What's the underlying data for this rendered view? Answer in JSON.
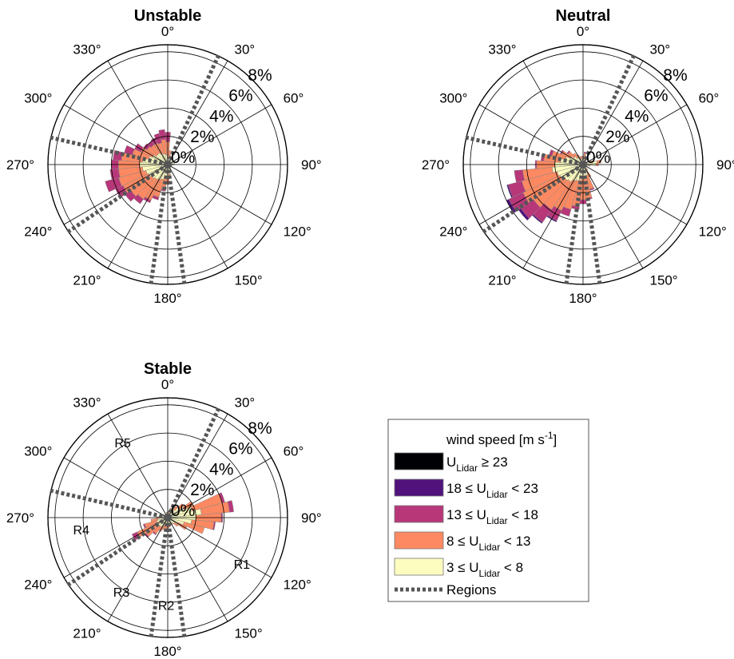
{
  "chart_data": {
    "type": "wind-rose",
    "angle_labels": [
      "0°",
      "30°",
      "60°",
      "90°",
      "120°",
      "150°",
      "180°",
      "210°",
      "240°",
      "270°",
      "300°",
      "330°"
    ],
    "radial_ticks": [
      "0%",
      "2%",
      "4%",
      "6%",
      "8%"
    ],
    "radial_values": [
      0,
      2,
      4,
      6,
      8
    ],
    "rmax": 8.5,
    "sector_width_deg": 10,
    "region_boundaries_deg": [
      25,
      172,
      188,
      236,
      283
    ],
    "legend": {
      "title": "wind speed [m s",
      "title_superscript": "-1",
      "title_close": "]",
      "entries": [
        {
          "name": "U ≥ 23",
          "pre": "U",
          "sub": "Lidar",
          "post": " ≥ 23",
          "color": "#000004"
        },
        {
          "name": "18 ≤ U < 23",
          "pre": "18 ≤ U",
          "sub": "Lidar",
          "post": " < 23",
          "color": "#51127c"
        },
        {
          "name": "13 ≤ U < 18",
          "pre": "13 ≤ U",
          "sub": "Lidar",
          "post": " < 18",
          "color": "#b73779"
        },
        {
          "name": "8 ≤ U < 13",
          "pre": "8 ≤ U",
          "sub": "Lidar",
          "post": " < 13",
          "color": "#fc8961"
        },
        {
          "name": "3 ≤ U < 8",
          "pre": "3 ≤ U",
          "sub": "Lidar",
          "post": " < 8",
          "color": "#fcfdbf"
        }
      ],
      "regions_label": "Regions"
    },
    "panels": [
      {
        "title": "Unstable",
        "region_labels": [],
        "sectors": [
          {
            "dir": 0,
            "cum": [
              0.5,
              1.6,
              2.3,
              2.3
            ]
          },
          {
            "dir": 10,
            "cum": [
              0.5,
              1.0,
              1.0,
              1.0
            ]
          },
          {
            "dir": 20,
            "cum": [
              0.4,
              0.6,
              0.6,
              0.6
            ]
          },
          {
            "dir": 30,
            "cum": [
              0.4,
              0.4,
              0.4,
              0.4
            ]
          },
          {
            "dir": 40,
            "cum": [
              0.3,
              0.3,
              0.3,
              0.3
            ]
          },
          {
            "dir": 50,
            "cum": [
              0.3,
              0.3,
              0.3,
              0.3
            ]
          },
          {
            "dir": 60,
            "cum": [
              0.3,
              0.3,
              0.3,
              0.3
            ]
          },
          {
            "dir": 70,
            "cum": [
              0.4,
              0.4,
              0.4,
              0.4
            ]
          },
          {
            "dir": 80,
            "cum": [
              0.5,
              0.5,
              0.5,
              0.5
            ]
          },
          {
            "dir": 90,
            "cum": [
              0.4,
              0.4,
              0.4,
              0.4
            ]
          },
          {
            "dir": 100,
            "cum": [
              0.3,
              0.3,
              0.3,
              0.3
            ]
          },
          {
            "dir": 110,
            "cum": [
              0.3,
              0.3,
              0.3,
              0.3
            ]
          },
          {
            "dir": 120,
            "cum": [
              0.3,
              0.3,
              0.3,
              0.3
            ]
          },
          {
            "dir": 130,
            "cum": [
              0.3,
              0.3,
              0.3,
              0.3
            ]
          },
          {
            "dir": 140,
            "cum": [
              0.3,
              0.3,
              0.3,
              0.3
            ]
          },
          {
            "dir": 150,
            "cum": [
              0.4,
              0.4,
              0.4,
              0.4
            ]
          },
          {
            "dir": 160,
            "cum": [
              0.5,
              0.6,
              0.6,
              0.6
            ]
          },
          {
            "dir": 170,
            "cum": [
              0.7,
              1.0,
              1.0,
              1.0
            ]
          },
          {
            "dir": 180,
            "cum": [
              0.8,
              1.4,
              1.4,
              1.4
            ]
          },
          {
            "dir": 190,
            "cum": [
              0.9,
              1.8,
              1.9,
              1.9
            ]
          },
          {
            "dir": 200,
            "cum": [
              1.1,
              2.4,
              2.6,
              2.6
            ]
          },
          {
            "dir": 210,
            "cum": [
              1.2,
              2.8,
              3.0,
              3.0
            ]
          },
          {
            "dir": 220,
            "cum": [
              1.3,
              3.0,
              3.4,
              3.4
            ]
          },
          {
            "dir": 230,
            "cum": [
              1.4,
              3.2,
              3.7,
              3.7
            ]
          },
          {
            "dir": 240,
            "cum": [
              1.5,
              3.5,
              4.1,
              4.1
            ]
          },
          {
            "dir": 250,
            "cum": [
              1.6,
              3.6,
              4.6,
              4.6
            ]
          },
          {
            "dir": 260,
            "cum": [
              1.8,
              3.5,
              4.1,
              4.1
            ]
          },
          {
            "dir": 270,
            "cum": [
              2.0,
              3.5,
              4.0,
              4.0
            ]
          },
          {
            "dir": 280,
            "cum": [
              1.8,
              3.3,
              3.9,
              3.9
            ]
          },
          {
            "dir": 290,
            "cum": [
              1.4,
              2.6,
              3.2,
              3.2
            ]
          },
          {
            "dir": 300,
            "cum": [
              1.2,
              2.1,
              2.6,
              2.6
            ]
          },
          {
            "dir": 310,
            "cum": [
              1.0,
              1.8,
              2.1,
              2.1
            ]
          },
          {
            "dir": 320,
            "cum": [
              1.0,
              1.7,
              2.0,
              2.0
            ]
          },
          {
            "dir": 330,
            "cum": [
              0.9,
              1.7,
              2.1,
              2.1
            ]
          },
          {
            "dir": 340,
            "cum": [
              0.8,
              1.6,
              2.3,
              2.3
            ]
          },
          {
            "dir": 350,
            "cum": [
              0.7,
              1.8,
              2.5,
              2.5
            ]
          }
        ]
      },
      {
        "title": "Neutral",
        "region_labels": [],
        "sectors": [
          {
            "dir": 0,
            "cum": [
              0.4,
              0.6,
              0.6,
              0.6
            ]
          },
          {
            "dir": 10,
            "cum": [
              0.4,
              0.8,
              0.9,
              0.9
            ]
          },
          {
            "dir": 20,
            "cum": [
              0.3,
              0.5,
              0.5,
              0.5
            ]
          },
          {
            "dir": 30,
            "cum": [
              0.3,
              0.3,
              0.3,
              0.3
            ]
          },
          {
            "dir": 40,
            "cum": [
              0.3,
              0.3,
              0.3,
              0.3
            ]
          },
          {
            "dir": 50,
            "cum": [
              0.3,
              0.3,
              0.3,
              0.3
            ]
          },
          {
            "dir": 60,
            "cum": [
              0.4,
              0.5,
              0.5,
              0.5
            ]
          },
          {
            "dir": 70,
            "cum": [
              0.6,
              0.7,
              0.7,
              0.7
            ]
          },
          {
            "dir": 80,
            "cum": [
              1.0,
              1.3,
              1.3,
              1.3
            ]
          },
          {
            "dir": 90,
            "cum": [
              0.9,
              1.1,
              1.1,
              1.1
            ]
          },
          {
            "dir": 100,
            "cum": [
              0.4,
              0.5,
              0.5,
              0.5
            ]
          },
          {
            "dir": 110,
            "cum": [
              0.3,
              0.3,
              0.3,
              0.3
            ]
          },
          {
            "dir": 120,
            "cum": [
              0.3,
              0.3,
              0.3,
              0.3
            ]
          },
          {
            "dir": 130,
            "cum": [
              0.3,
              0.3,
              0.3,
              0.3
            ]
          },
          {
            "dir": 140,
            "cum": [
              0.4,
              0.5,
              0.5,
              0.5
            ]
          },
          {
            "dir": 150,
            "cum": [
              0.6,
              1.0,
              1.0,
              1.0
            ]
          },
          {
            "dir": 160,
            "cum": [
              0.8,
              1.8,
              1.9,
              1.9
            ]
          },
          {
            "dir": 170,
            "cum": [
              0.9,
              2.4,
              2.5,
              2.5
            ]
          },
          {
            "dir": 180,
            "cum": [
              1.0,
              2.5,
              2.8,
              2.8
            ]
          },
          {
            "dir": 190,
            "cum": [
              1.1,
              3.0,
              3.2,
              3.2
            ]
          },
          {
            "dir": 200,
            "cum": [
              1.2,
              3.3,
              3.8,
              3.8
            ]
          },
          {
            "dir": 210,
            "cum": [
              1.3,
              3.6,
              4.4,
              4.5
            ]
          },
          {
            "dir": 220,
            "cum": [
              1.5,
              3.9,
              5.0,
              5.1
            ]
          },
          {
            "dir": 230,
            "cum": [
              1.6,
              4.3,
              5.4,
              5.6
            ]
          },
          {
            "dir": 240,
            "cum": [
              1.8,
              4.7,
              5.8,
              6.0
            ]
          },
          {
            "dir": 250,
            "cum": [
              1.9,
              4.5,
              5.5,
              5.6
            ]
          },
          {
            "dir": 260,
            "cum": [
              2.2,
              4.3,
              4.9,
              4.9
            ]
          },
          {
            "dir": 270,
            "cum": [
              2.0,
              3.3,
              3.4,
              3.4
            ]
          },
          {
            "dir": 280,
            "cum": [
              1.6,
              2.8,
              3.0,
              3.0
            ]
          },
          {
            "dir": 290,
            "cum": [
              1.3,
              2.3,
              2.5,
              2.5
            ]
          },
          {
            "dir": 300,
            "cum": [
              1.0,
              1.7,
              1.8,
              1.8
            ]
          },
          {
            "dir": 310,
            "cum": [
              0.8,
              1.3,
              1.4,
              1.4
            ]
          },
          {
            "dir": 320,
            "cum": [
              0.6,
              1.0,
              1.0,
              1.0
            ]
          },
          {
            "dir": 330,
            "cum": [
              0.5,
              0.8,
              0.8,
              0.8
            ]
          },
          {
            "dir": 340,
            "cum": [
              0.4,
              0.6,
              0.6,
              0.6
            ]
          },
          {
            "dir": 350,
            "cum": [
              0.4,
              0.6,
              0.6,
              0.6
            ]
          }
        ]
      },
      {
        "title": "Stable",
        "region_labels": [
          "R1",
          "R2",
          "R3",
          "R4",
          "R5"
        ],
        "region_label_dirs": [
          122,
          181,
          212,
          262,
          329
        ],
        "region_label_r": 6.2,
        "sectors": [
          {
            "dir": 0,
            "cum": [
              0.3,
              0.4,
              0.4,
              0.4
            ]
          },
          {
            "dir": 10,
            "cum": [
              0.3,
              0.5,
              0.5,
              0.5
            ]
          },
          {
            "dir": 20,
            "cum": [
              0.4,
              0.7,
              0.7,
              0.7
            ]
          },
          {
            "dir": 30,
            "cum": [
              0.5,
              0.8,
              0.8,
              0.8
            ]
          },
          {
            "dir": 40,
            "cum": [
              0.7,
              1.0,
              1.0,
              1.0
            ]
          },
          {
            "dir": 50,
            "cum": [
              1.0,
              1.4,
              1.4,
              1.4
            ]
          },
          {
            "dir": 60,
            "cum": [
              1.3,
              2.0,
              2.0,
              2.0
            ]
          },
          {
            "dir": 70,
            "cum": [
              1.8,
              4.0,
              4.2,
              4.2
            ]
          },
          {
            "dir": 80,
            "cum": [
              2.4,
              4.4,
              4.7,
              4.7
            ]
          },
          {
            "dir": 90,
            "cum": [
              2.0,
              3.8,
              3.9,
              3.9
            ]
          },
          {
            "dir": 100,
            "cum": [
              1.7,
              3.3,
              3.4,
              3.4
            ]
          },
          {
            "dir": 110,
            "cum": [
              1.2,
              2.7,
              2.7,
              2.7
            ]
          },
          {
            "dir": 120,
            "cum": [
              0.8,
              1.5,
              1.5,
              1.5
            ]
          },
          {
            "dir": 130,
            "cum": [
              0.6,
              0.9,
              0.9,
              0.9
            ]
          },
          {
            "dir": 140,
            "cum": [
              0.5,
              0.6,
              0.6,
              0.6
            ]
          },
          {
            "dir": 150,
            "cum": [
              0.5,
              0.5,
              0.5,
              0.5
            ]
          },
          {
            "dir": 160,
            "cum": [
              0.5,
              0.6,
              0.6,
              0.6
            ]
          },
          {
            "dir": 170,
            "cum": [
              0.5,
              0.7,
              0.7,
              0.7
            ]
          },
          {
            "dir": 180,
            "cum": [
              0.5,
              0.8,
              0.8,
              0.8
            ]
          },
          {
            "dir": 190,
            "cum": [
              0.5,
              0.8,
              0.8,
              0.8
            ]
          },
          {
            "dir": 200,
            "cum": [
              0.6,
              0.9,
              0.9,
              0.9
            ]
          },
          {
            "dir": 210,
            "cum": [
              0.7,
              1.1,
              1.1,
              1.1
            ]
          },
          {
            "dir": 220,
            "cum": [
              0.8,
              1.4,
              1.5,
              1.5
            ]
          },
          {
            "dir": 230,
            "cum": [
              0.9,
              1.9,
              2.0,
              2.0
            ]
          },
          {
            "dir": 240,
            "cum": [
              0.9,
              2.4,
              2.8,
              2.8
            ]
          },
          {
            "dir": 250,
            "cum": [
              0.8,
              1.7,
              1.8,
              1.8
            ]
          },
          {
            "dir": 260,
            "cum": [
              0.7,
              1.2,
              1.2,
              1.2
            ]
          },
          {
            "dir": 270,
            "cum": [
              0.6,
              0.8,
              0.8,
              0.8
            ]
          },
          {
            "dir": 280,
            "cum": [
              0.5,
              0.6,
              0.6,
              0.6
            ]
          },
          {
            "dir": 290,
            "cum": [
              0.4,
              0.5,
              0.5,
              0.5
            ]
          },
          {
            "dir": 300,
            "cum": [
              0.3,
              0.4,
              0.4,
              0.4
            ]
          },
          {
            "dir": 310,
            "cum": [
              0.3,
              0.3,
              0.3,
              0.3
            ]
          },
          {
            "dir": 320,
            "cum": [
              0.3,
              0.3,
              0.3,
              0.3
            ]
          },
          {
            "dir": 330,
            "cum": [
              0.3,
              0.3,
              0.3,
              0.3
            ]
          },
          {
            "dir": 340,
            "cum": [
              0.3,
              0.3,
              0.3,
              0.3
            ]
          },
          {
            "dir": 350,
            "cum": [
              0.3,
              0.4,
              0.4,
              0.4
            ]
          }
        ]
      }
    ]
  }
}
